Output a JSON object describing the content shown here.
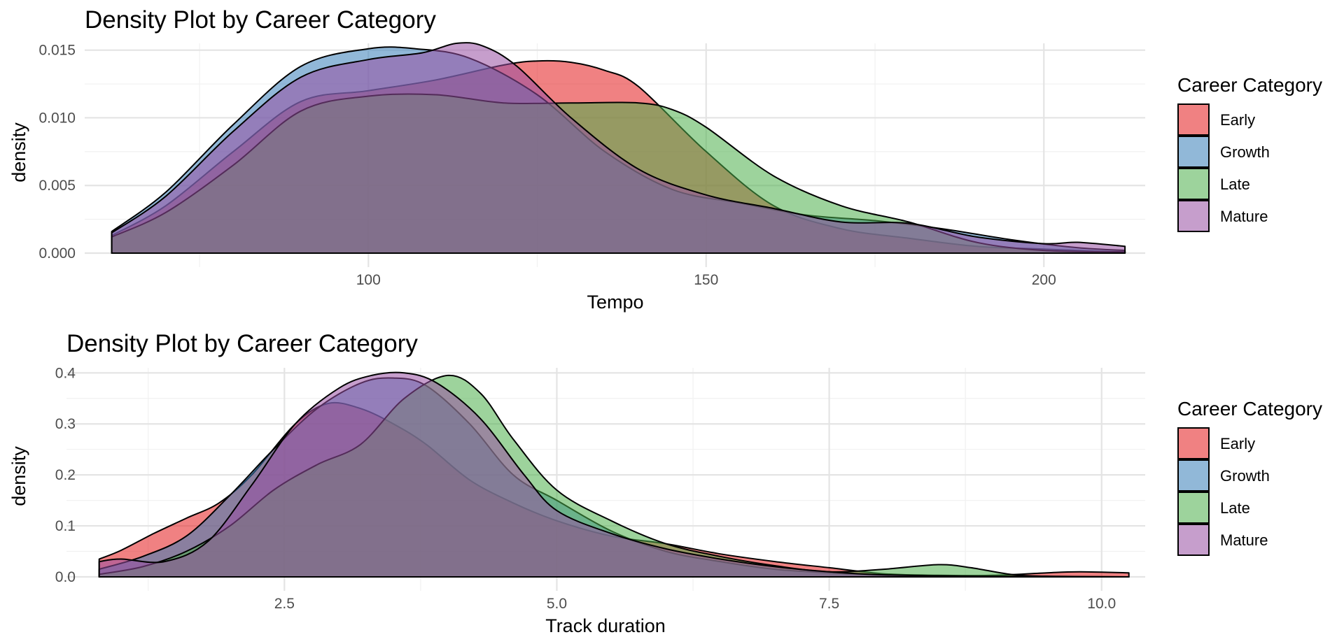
{
  "colors": {
    "Early": "#E41A1C",
    "Growth": "#377EB8",
    "Late": "#4DAF4A",
    "Mature": "#984EA3"
  },
  "fill_opacity": 0.55,
  "chart_data": [
    {
      "type": "area",
      "subtype": "density",
      "title": "Density Plot by Career Category",
      "xlabel": "Tempo",
      "ylabel": "density",
      "xlim": [
        58,
        215
      ],
      "ylim": [
        0,
        0.0155
      ],
      "x_ticks": [
        100,
        150,
        200
      ],
      "x_tick_labels": [
        "100",
        "150",
        "200"
      ],
      "x_minor_ticks": [
        75,
        125,
        175
      ],
      "y_ticks": [
        0,
        0.005,
        0.01,
        0.015
      ],
      "y_tick_labels": [
        "0.000",
        "0.005",
        "0.010",
        "0.015"
      ],
      "y_minor_ticks": [
        0.0025,
        0.0075,
        0.0125
      ],
      "grid": true,
      "legend": {
        "title": "Career Category",
        "placement": "right",
        "entries": [
          "Early",
          "Growth",
          "Late",
          "Mature"
        ]
      },
      "series": [
        {
          "name": "Early",
          "x": [
            62,
            70,
            80,
            90,
            100,
            110,
            120,
            125,
            130,
            135,
            140,
            150,
            160,
            170,
            180,
            190,
            200,
            210,
            212
          ],
          "values": [
            0.0013,
            0.0035,
            0.0075,
            0.0112,
            0.012,
            0.0128,
            0.0139,
            0.0142,
            0.0141,
            0.0135,
            0.0123,
            0.0075,
            0.0035,
            0.0018,
            0.0011,
            0.0005,
            0.0003,
            0.0001,
            0.0001
          ]
        },
        {
          "name": "Growth",
          "x": [
            62,
            70,
            80,
            90,
            100,
            107,
            115,
            125,
            135,
            145,
            155,
            165,
            175,
            185,
            195,
            205,
            212
          ],
          "values": [
            0.0016,
            0.0045,
            0.0095,
            0.0138,
            0.0151,
            0.0151,
            0.0144,
            0.0117,
            0.0075,
            0.0047,
            0.0037,
            0.0028,
            0.0024,
            0.0018,
            0.001,
            0.0004,
            0.0002
          ]
        },
        {
          "name": "Late",
          "x": [
            62,
            70,
            80,
            90,
            100,
            110,
            120,
            130,
            140,
            145,
            150,
            160,
            170,
            180,
            190,
            200,
            212
          ],
          "values": [
            0.0012,
            0.003,
            0.0065,
            0.0105,
            0.0116,
            0.0117,
            0.0111,
            0.0111,
            0.0111,
            0.0106,
            0.0093,
            0.0057,
            0.0035,
            0.0023,
            0.0008,
            0.0002,
            0.0001
          ]
        },
        {
          "name": "Mature",
          "x": [
            62,
            70,
            80,
            90,
            100,
            108,
            113,
            117,
            122,
            130,
            140,
            150,
            160,
            170,
            180,
            190,
            200,
            205,
            212
          ],
          "values": [
            0.0015,
            0.0042,
            0.009,
            0.013,
            0.0143,
            0.0148,
            0.0155,
            0.0153,
            0.0138,
            0.01,
            0.0062,
            0.0043,
            0.0033,
            0.0023,
            0.0022,
            0.0012,
            0.0007,
            0.0008,
            0.0005
          ]
        }
      ]
    },
    {
      "type": "area",
      "subtype": "density",
      "title": "Density Plot by Career Category",
      "xlabel": "Track duration",
      "ylabel": "density",
      "xlim": [
        0.5,
        10.4
      ],
      "ylim": [
        0,
        0.41
      ],
      "x_ticks": [
        2.5,
        5.0,
        7.5,
        10.0
      ],
      "x_tick_labels": [
        "2.5",
        "5.0",
        "7.5",
        "10.0"
      ],
      "x_minor_ticks": [
        1.25,
        3.75,
        6.25,
        8.75
      ],
      "y_ticks": [
        0,
        0.1,
        0.2,
        0.3,
        0.4
      ],
      "y_tick_labels": [
        "0.0",
        "0.1",
        "0.2",
        "0.3",
        "0.4"
      ],
      "y_minor_ticks": [
        0.05,
        0.15,
        0.25,
        0.35
      ],
      "grid": true,
      "legend": {
        "title": "Career Category",
        "placement": "right",
        "entries": [
          "Early",
          "Growth",
          "Late",
          "Mature"
        ]
      },
      "series": [
        {
          "name": "Early",
          "x": [
            0.8,
            1.0,
            1.3,
            1.6,
            1.9,
            2.2,
            2.6,
            2.9,
            3.2,
            3.5,
            3.8,
            4.2,
            4.6,
            5.0,
            5.5,
            6.0,
            6.5,
            7.0,
            7.5,
            8.0,
            8.5,
            9.0,
            9.5,
            9.8,
            10.25
          ],
          "values": [
            0.035,
            0.052,
            0.085,
            0.115,
            0.145,
            0.2,
            0.3,
            0.34,
            0.33,
            0.3,
            0.26,
            0.19,
            0.145,
            0.11,
            0.08,
            0.065,
            0.045,
            0.03,
            0.018,
            0.006,
            0.003,
            0.003,
            0.008,
            0.01,
            0.008
          ]
        },
        {
          "name": "Growth",
          "x": [
            0.8,
            1.2,
            1.6,
            2.0,
            2.4,
            2.8,
            3.2,
            3.5,
            3.8,
            4.2,
            4.6,
            5.0,
            5.5,
            6.0,
            6.5,
            7.0,
            7.5,
            8.0,
            8.5,
            9.0,
            10.25
          ],
          "values": [
            0.015,
            0.04,
            0.08,
            0.16,
            0.25,
            0.33,
            0.38,
            0.39,
            0.375,
            0.3,
            0.2,
            0.15,
            0.09,
            0.05,
            0.03,
            0.015,
            0.008,
            0.004,
            0.002,
            0.001,
            0.0
          ]
        },
        {
          "name": "Late",
          "x": [
            0.8,
            1.2,
            1.6,
            2.0,
            2.4,
            2.8,
            3.2,
            3.6,
            4.0,
            4.3,
            4.6,
            5.0,
            5.5,
            6.0,
            6.5,
            7.0,
            7.5,
            8.0,
            8.5,
            8.8,
            9.2,
            9.6,
            10.25
          ],
          "values": [
            0.005,
            0.02,
            0.05,
            0.1,
            0.17,
            0.22,
            0.26,
            0.35,
            0.395,
            0.36,
            0.27,
            0.17,
            0.11,
            0.065,
            0.04,
            0.022,
            0.01,
            0.015,
            0.024,
            0.018,
            0.004,
            0.001,
            0.0
          ]
        },
        {
          "name": "Mature",
          "x": [
            0.8,
            1.0,
            1.4,
            1.8,
            2.2,
            2.6,
            3.0,
            3.3,
            3.6,
            3.9,
            4.3,
            4.7,
            5.0,
            5.5,
            6.0,
            6.5,
            7.0,
            7.5,
            8.0,
            9.0,
            10.25
          ],
          "values": [
            0.03,
            0.035,
            0.03,
            0.07,
            0.18,
            0.3,
            0.37,
            0.395,
            0.4,
            0.38,
            0.31,
            0.2,
            0.13,
            0.085,
            0.055,
            0.035,
            0.02,
            0.01,
            0.004,
            0.001,
            0.0
          ]
        }
      ]
    }
  ]
}
